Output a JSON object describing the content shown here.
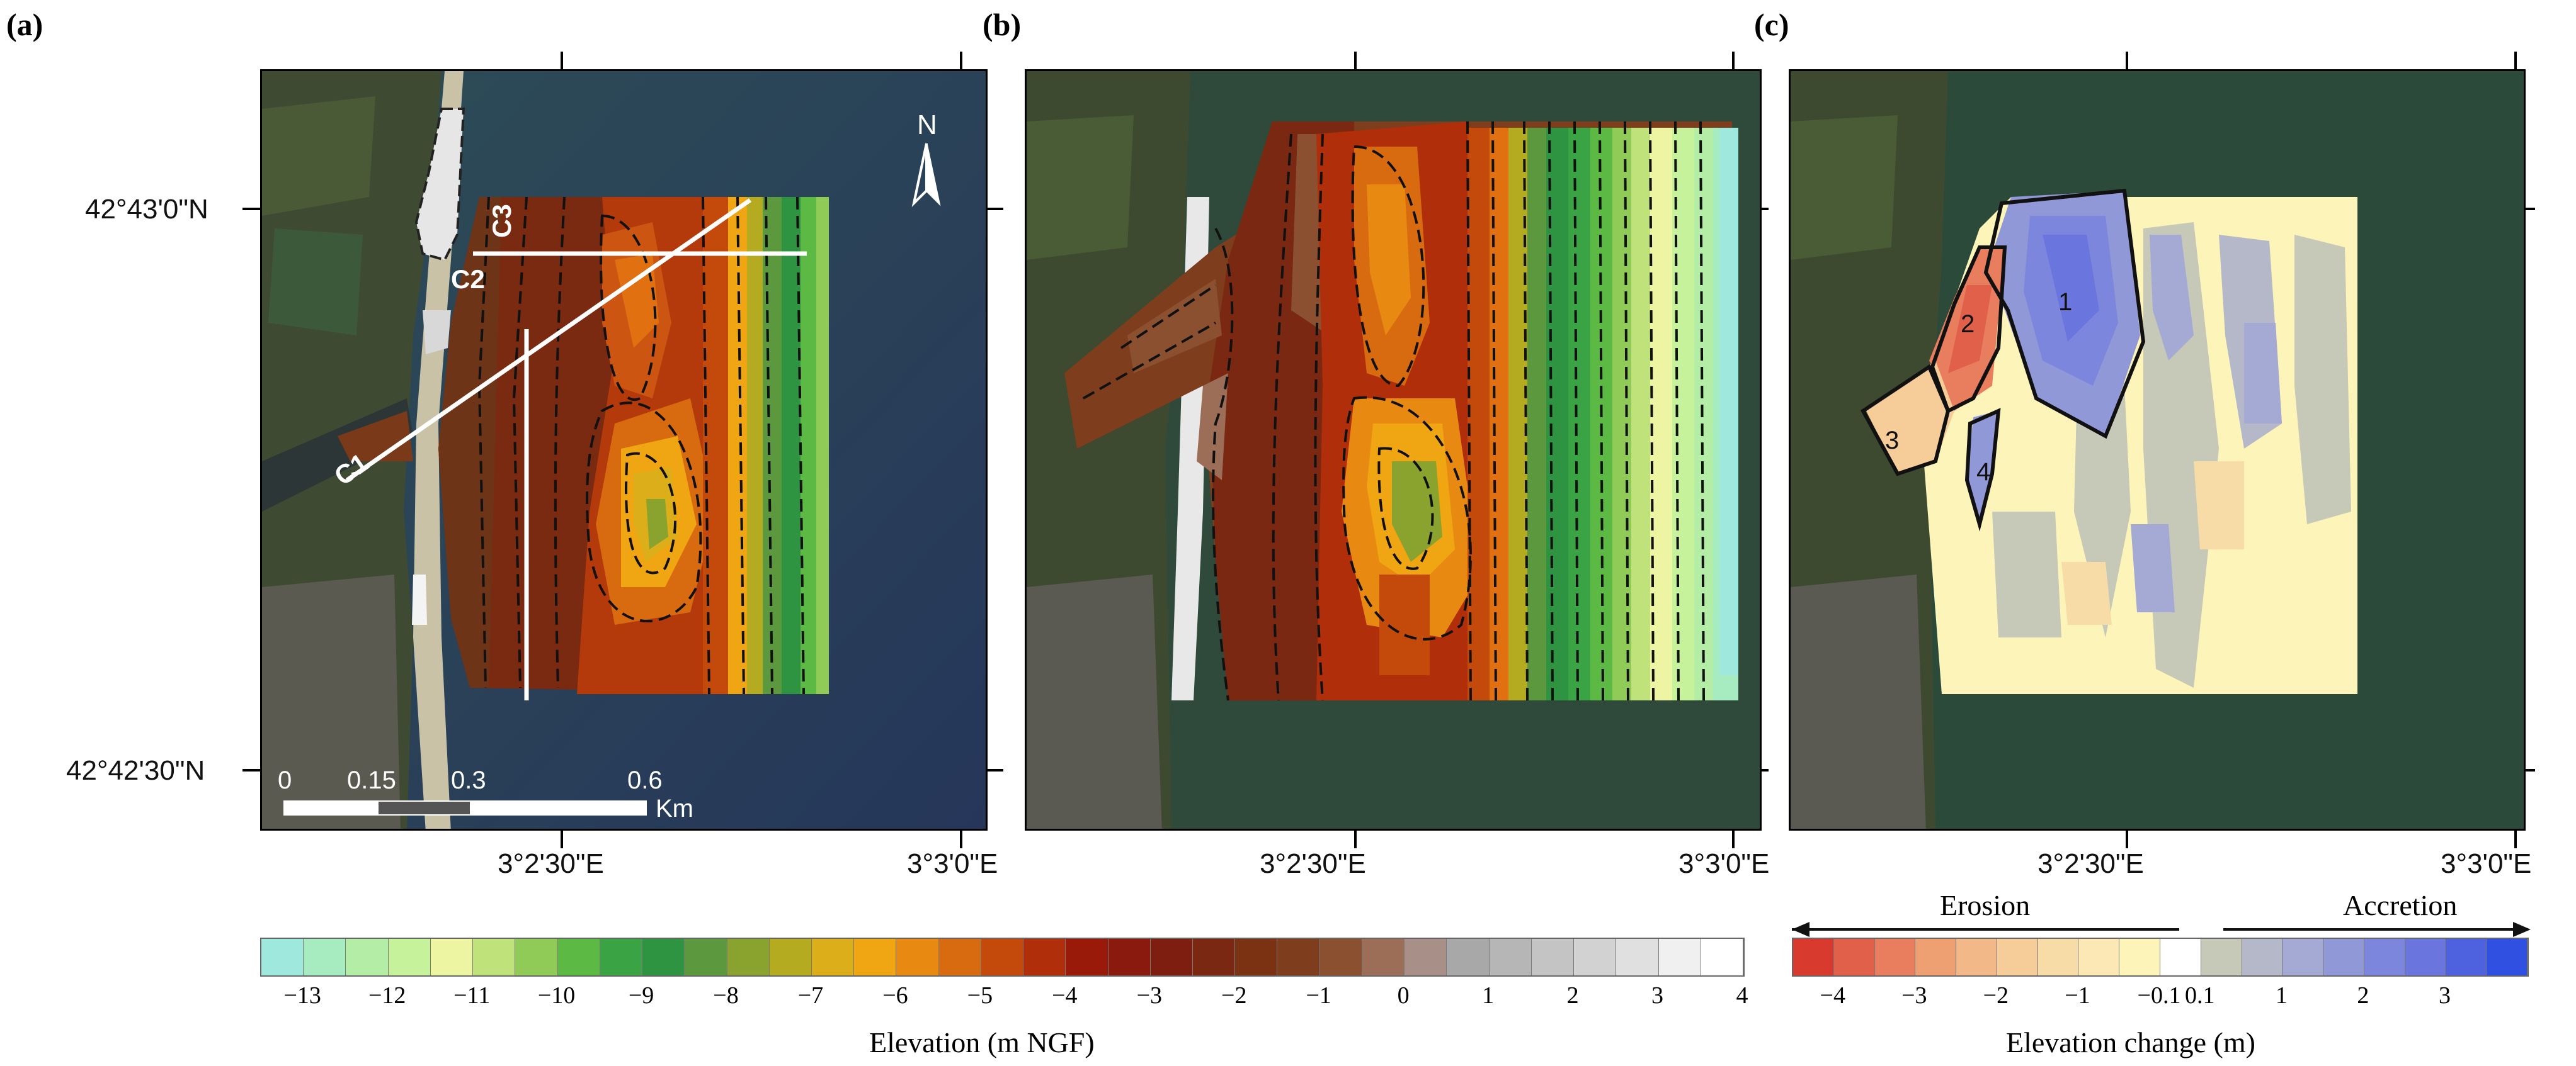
{
  "panels": [
    {
      "label": "(a)"
    },
    {
      "label": "(b)"
    },
    {
      "label": "(c)"
    }
  ],
  "coords": {
    "lat_top": "42°43'0\"N",
    "lat_bottom": "42°42'30\"N",
    "lon_left": "3°2'30\"E",
    "lon_right": "3°3'0\"E"
  },
  "panel_a": {
    "north_label": "N",
    "transects": [
      "C1",
      "C2",
      "C3"
    ],
    "scalebar": {
      "ticks": [
        "0",
        "0.15",
        "0.3",
        "0.6"
      ],
      "unit": "Km"
    }
  },
  "panel_c": {
    "zones": [
      "1",
      "2",
      "3",
      "4"
    ]
  },
  "elevation_bar": {
    "title": "Elevation (m NGF)",
    "labels": [
      "−13",
      "−12",
      "−11",
      "−10",
      "−9",
      "−8",
      "−7",
      "−6",
      "−5",
      "−4",
      "−3",
      "−2",
      "−1",
      "0",
      "1",
      "2",
      "3",
      "4"
    ],
    "colors": [
      "#9ee8de",
      "#a6ecc0",
      "#b4eea6",
      "#c6f29c",
      "#eef5a2",
      "#bfe27a",
      "#8fcb56",
      "#5cb944",
      "#3aa444",
      "#2f9441",
      "#5c993e",
      "#8aa32e",
      "#b4ab20",
      "#dcae1a",
      "#f0a512",
      "#e88a12",
      "#d86a10",
      "#c44a0c",
      "#b02e0a",
      "#9a1a0a",
      "#8a1a0e",
      "#7e1e10",
      "#7a2812",
      "#7a3212",
      "#7e3e1e",
      "#8a5030",
      "#9c6e58",
      "#a89088",
      "#a8a8a8",
      "#b6b6b6",
      "#c4c4c4",
      "#d2d2d2",
      "#e0e0e0",
      "#f0f0f0",
      "#ffffff"
    ]
  },
  "change_bar": {
    "title": "Elevation change (m)",
    "erosion": "Erosion",
    "accretion": "Accretion",
    "labels": [
      "−4",
      "−3",
      "−2",
      "−1",
      "−0.1",
      "0.1",
      "1",
      "2",
      "3"
    ],
    "colors": [
      "#d83a2e",
      "#e0604a",
      "#e87e5e",
      "#eea072",
      "#f2b888",
      "#f6cc98",
      "#f8dca8",
      "#fce8b4",
      "#fcf4b8",
      "#ffffff",
      "#c6c8b8",
      "#b4b8c8",
      "#a4aad4",
      "#9098d8",
      "#7c86dc",
      "#6a76de",
      "#4e62e0",
      "#3050e2"
    ]
  }
}
